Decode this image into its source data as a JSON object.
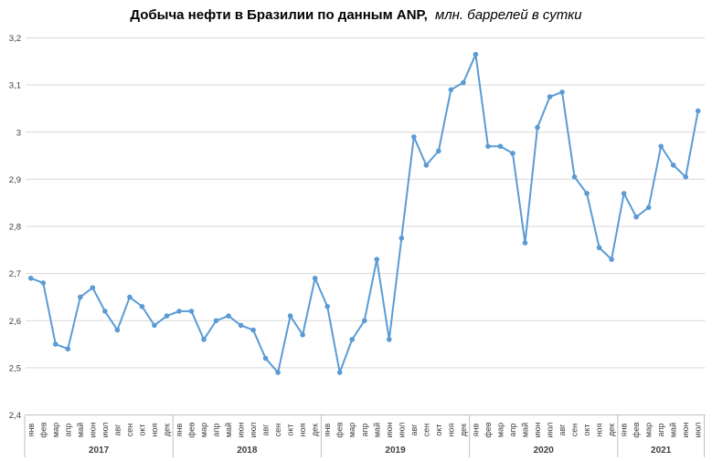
{
  "title": {
    "main": "Добыча нефти в Бразилии по данным ANP,",
    "sub": "млн. баррелей в сутки"
  },
  "chart_data": {
    "type": "line",
    "title": "Добыча нефти в Бразилии по данным ANP, млн. баррелей в сутки",
    "ylabel": "",
    "xlabel": "",
    "ylim": [
      2.4,
      3.2
    ],
    "ytick_step": 0.1,
    "ytick_labels": [
      "2,4",
      "2,5",
      "2,6",
      "2,7",
      "2,8",
      "2,9",
      "3",
      "3,1",
      "3,2"
    ],
    "grid": true,
    "legend": false,
    "x_axis": {
      "month_labels": [
        "янв",
        "фев",
        "мар",
        "апр",
        "май",
        "июн",
        "июл",
        "авг",
        "сен",
        "окт",
        "ноя",
        "дек"
      ],
      "years": [
        {
          "label": "2017",
          "months": 12
        },
        {
          "label": "2018",
          "months": 12
        },
        {
          "label": "2019",
          "months": 12
        },
        {
          "label": "2020",
          "months": 12
        },
        {
          "label": "2021",
          "months": 7
        }
      ]
    },
    "series": [
      {
        "name": "Добыча нефти, млн. баррелей в сутки",
        "values": [
          2.69,
          2.68,
          2.55,
          2.54,
          2.65,
          2.67,
          2.62,
          2.58,
          2.65,
          2.63,
          2.59,
          2.61,
          2.62,
          2.62,
          2.56,
          2.6,
          2.61,
          2.59,
          2.58,
          2.52,
          2.49,
          2.61,
          2.57,
          2.69,
          2.63,
          2.49,
          2.56,
          2.6,
          2.73,
          2.56,
          2.775,
          2.99,
          2.93,
          2.96,
          3.09,
          3.105,
          3.165,
          2.97,
          2.97,
          2.955,
          2.765,
          3.01,
          3.075,
          3.085,
          2.905,
          2.87,
          2.755,
          2.73,
          2.87,
          2.82,
          2.84,
          2.97,
          2.93,
          2.905,
          3.045
        ]
      }
    ],
    "colors": {
      "line": "#5B9BD5",
      "marker": "#5B9BD5",
      "grid": "#D9D9D9",
      "axis": "#BFBFBF",
      "labels": "#404040"
    }
  }
}
